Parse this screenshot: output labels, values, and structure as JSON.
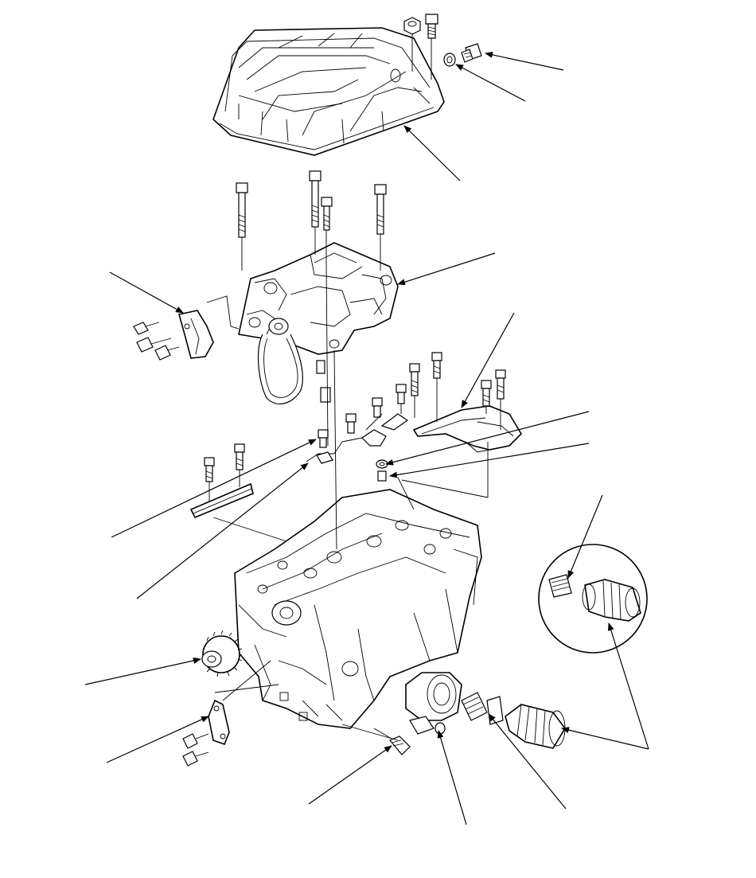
{
  "diagram": {
    "type": "exploded-parts-view",
    "background_color": "#ffffff",
    "line_color": "#000000",
    "parts": [
      "oil-pan",
      "oil-pan-bolt",
      "oil-pan-nut",
      "drain-plug",
      "drain-plug-washer",
      "oil-pump",
      "oil-pump-bolts",
      "oil-pump-chain",
      "chain-tensioner",
      "chain-guide",
      "baffle-plate",
      "baffle-bolts",
      "oil-strainer",
      "oil-strainer-gasket",
      "o-ring",
      "dowel-pin",
      "crankshaft-sprocket",
      "bracket",
      "engine-block",
      "oil-pressure-switch",
      "oil-cooler",
      "oil-filter-feed-bolt",
      "oil-filter",
      "filter-detail-inset"
    ]
  }
}
